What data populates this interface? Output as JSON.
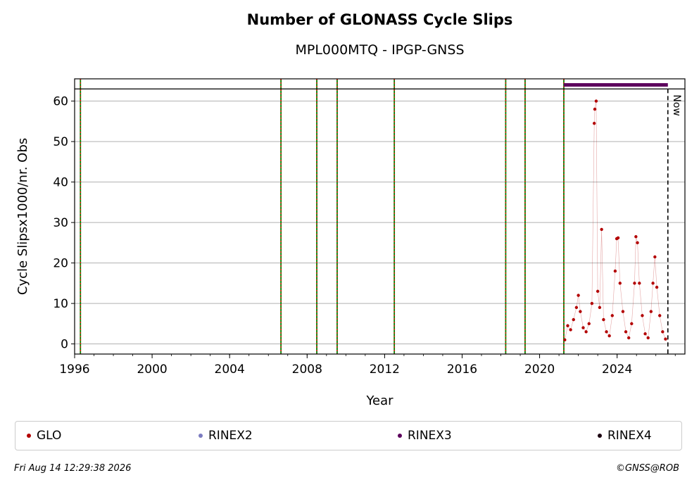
{
  "chart_data": {
    "type": "scatter",
    "title": "Number of GLONASS Cycle Slips",
    "subtitle": "MPL000MTQ - IPGP-GNSS",
    "xlabel": "Year",
    "ylabel": "Cycle Slipsx1000/nr. Obs",
    "xlim": [
      1996.0,
      2027.5
    ],
    "ylim": [
      -2.5,
      65.5
    ],
    "xticks": [
      1996,
      2000,
      2004,
      2008,
      2012,
      2016,
      2020,
      2024
    ],
    "yticks": [
      0,
      10,
      20,
      30,
      40,
      50,
      60
    ],
    "grid": "horizontal",
    "event_lines": [
      1996.3,
      2006.65,
      2008.5,
      2009.55,
      2012.5,
      2018.25,
      2019.25,
      2021.25
    ],
    "reference_line_y": 63,
    "now_line": {
      "x": 2026.62,
      "label": "Now"
    },
    "rinex3_bar": {
      "x_start": 2021.25,
      "x_end": 2026.62,
      "y": 64
    },
    "series": [
      {
        "name": "GLO",
        "color": "#b30000",
        "points": [
          [
            2021.3,
            1.0
          ],
          [
            2021.45,
            4.5
          ],
          [
            2021.6,
            3.5
          ],
          [
            2021.75,
            6.0
          ],
          [
            2021.9,
            9.0
          ],
          [
            2022.0,
            12.0
          ],
          [
            2022.1,
            8.0
          ],
          [
            2022.25,
            4.0
          ],
          [
            2022.4,
            3.0
          ],
          [
            2022.55,
            5.0
          ],
          [
            2022.7,
            10.0
          ],
          [
            2022.82,
            54.5
          ],
          [
            2022.85,
            58.0
          ],
          [
            2022.92,
            60.0
          ],
          [
            2023.0,
            13.0
          ],
          [
            2023.1,
            9.0
          ],
          [
            2023.2,
            28.3
          ],
          [
            2023.3,
            6.0
          ],
          [
            2023.45,
            3.0
          ],
          [
            2023.6,
            2.0
          ],
          [
            2023.75,
            7.0
          ],
          [
            2023.9,
            18.0
          ],
          [
            2023.98,
            26.0
          ],
          [
            2024.05,
            26.2
          ],
          [
            2024.15,
            15.0
          ],
          [
            2024.3,
            8.0
          ],
          [
            2024.45,
            3.0
          ],
          [
            2024.6,
            1.5
          ],
          [
            2024.75,
            5.0
          ],
          [
            2024.9,
            15.0
          ],
          [
            2024.97,
            26.5
          ],
          [
            2025.05,
            25.0
          ],
          [
            2025.15,
            15.0
          ],
          [
            2025.3,
            7.0
          ],
          [
            2025.45,
            2.5
          ],
          [
            2025.6,
            1.5
          ],
          [
            2025.75,
            8.0
          ],
          [
            2025.85,
            15.0
          ],
          [
            2025.95,
            21.5
          ],
          [
            2026.05,
            14.0
          ],
          [
            2026.2,
            7.0
          ],
          [
            2026.35,
            3.0
          ],
          [
            2026.5,
            1.2
          ]
        ]
      },
      {
        "name": "RINEX2",
        "color": "#7b7bc0"
      },
      {
        "name": "RINEX3",
        "color": "#5c005c"
      },
      {
        "name": "RINEX4",
        "color": "#1a0010"
      }
    ]
  },
  "footer": {
    "timestamp": "Fri Aug 14 12:29:38 2026",
    "credit": "©GNSS@ROB"
  }
}
